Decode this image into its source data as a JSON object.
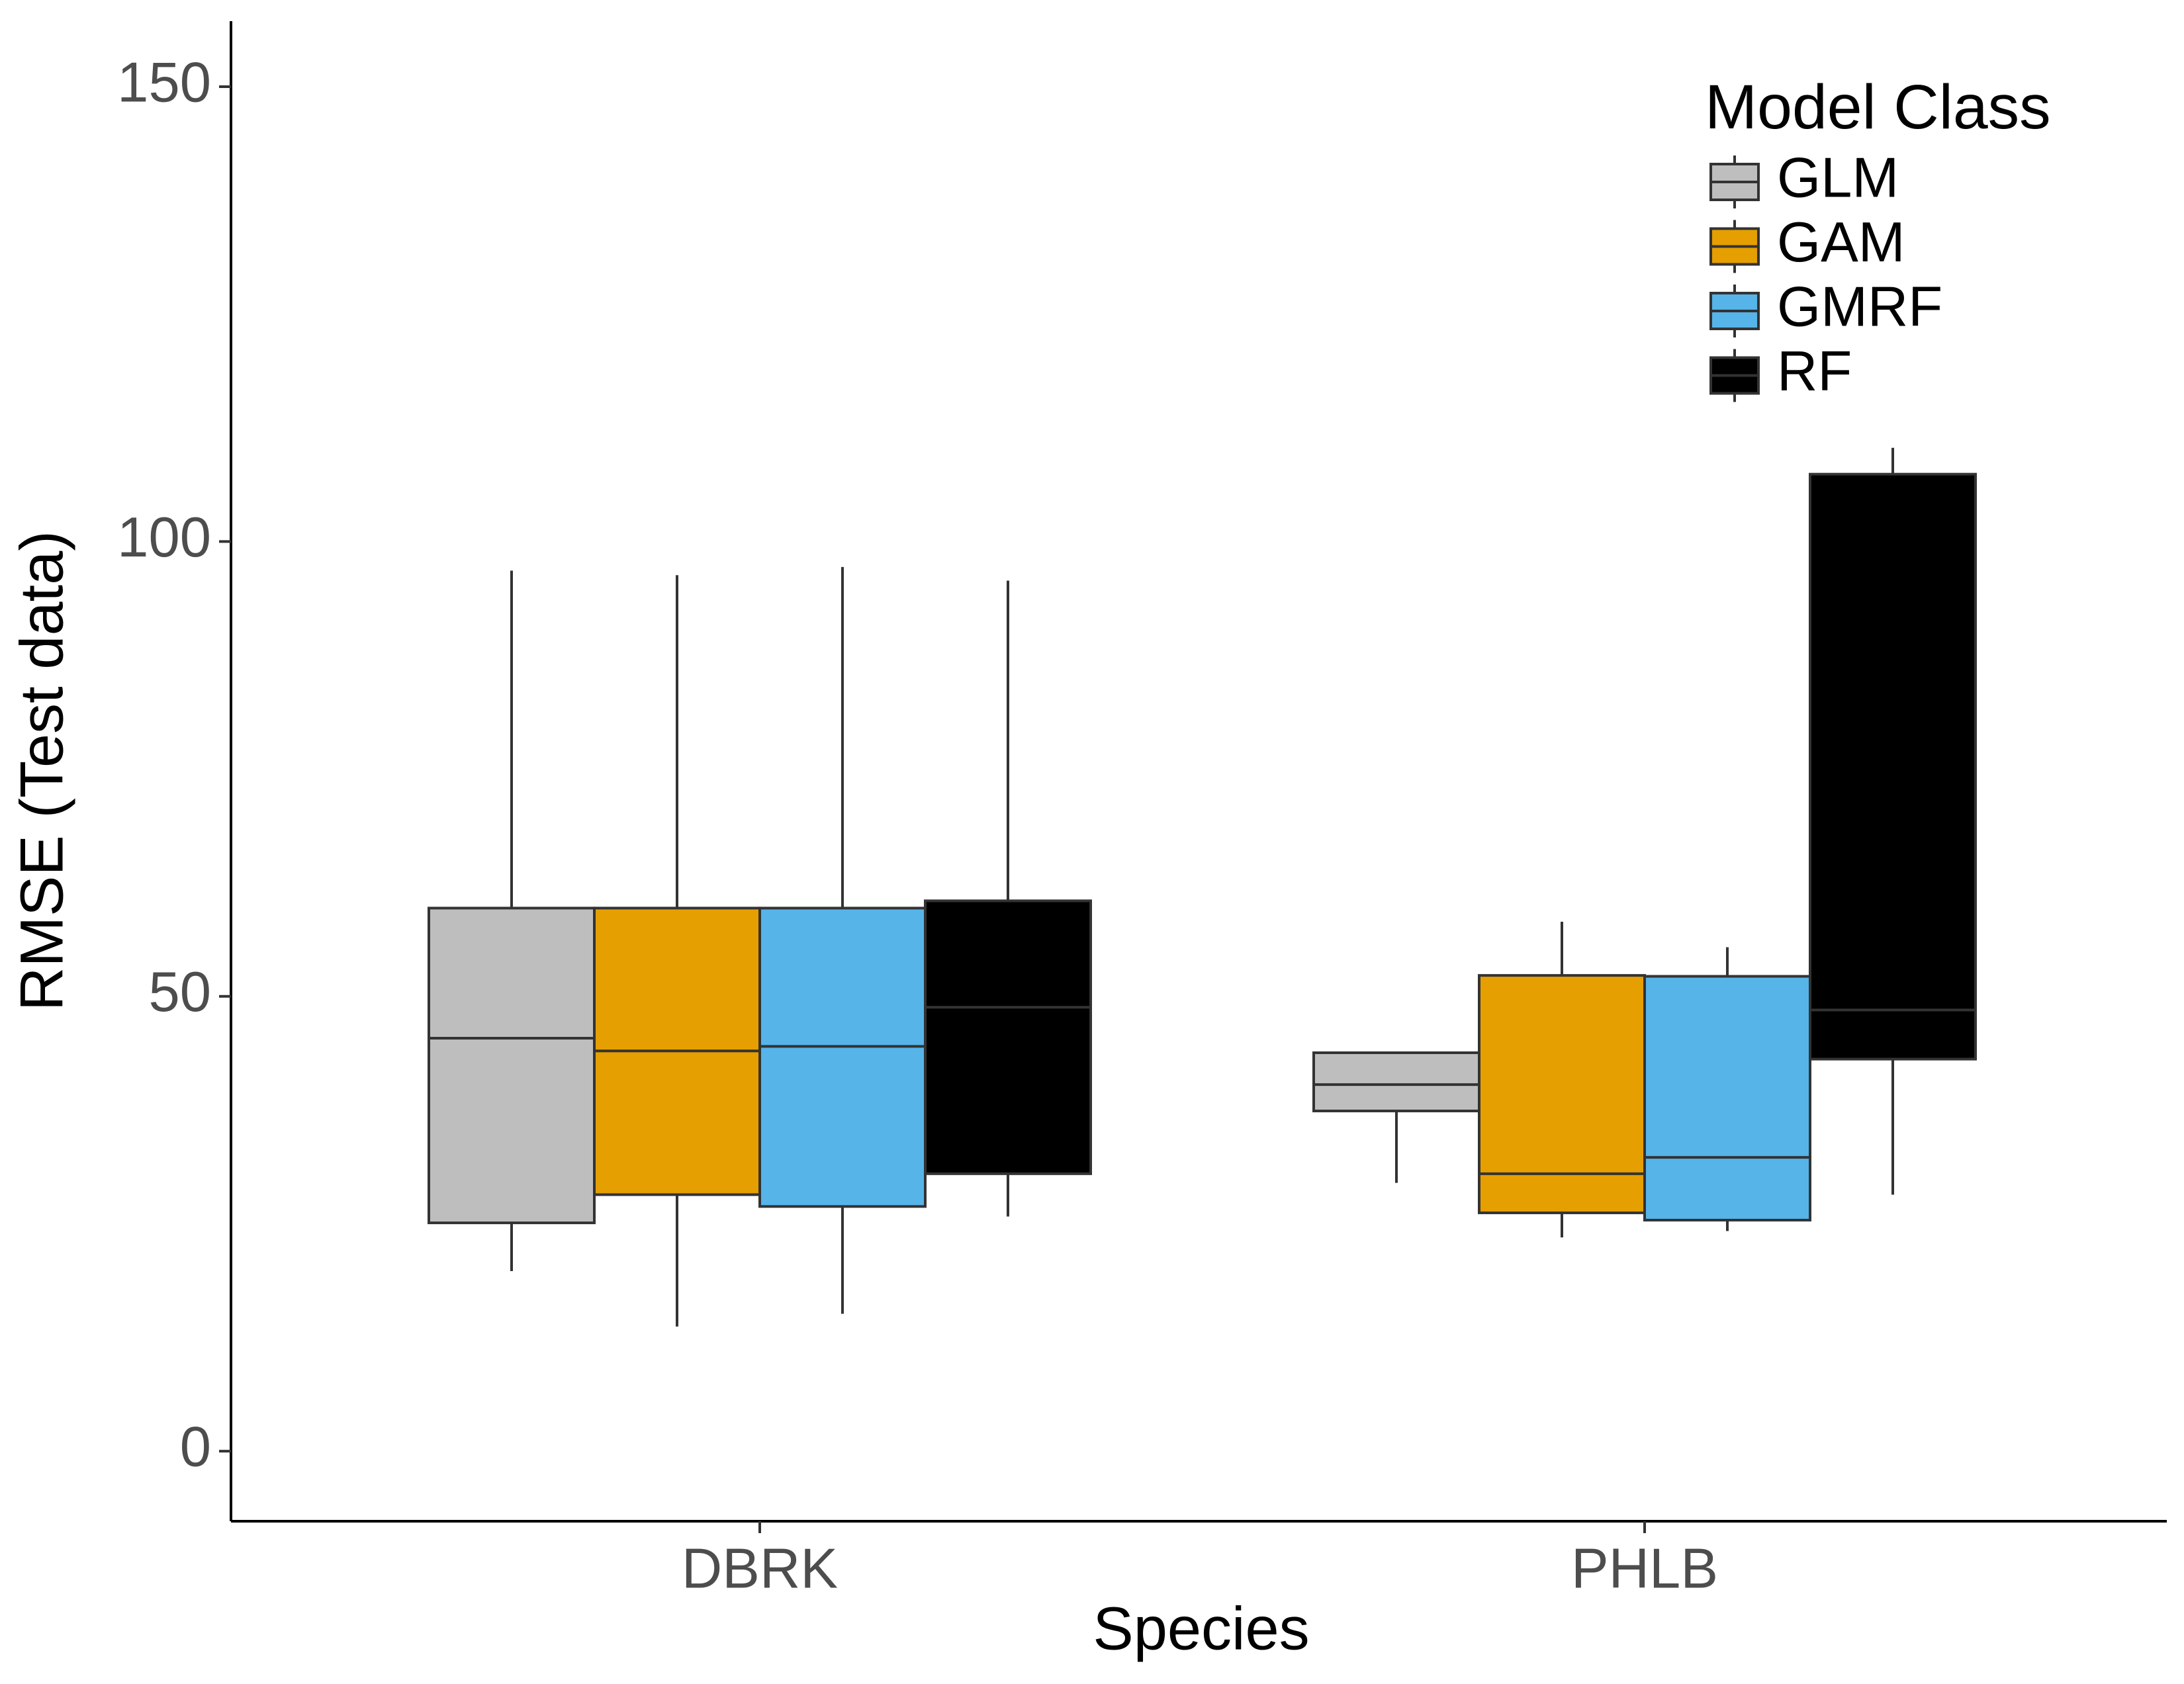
{
  "chart_data": {
    "type": "boxplot",
    "x_label": "Species",
    "y_label": "RMSE (Test data)",
    "legend_title": "Model Class",
    "legend_position": "top-right",
    "categories": [
      "DBRK",
      "PHLB"
    ],
    "series": [
      {
        "name": "GLM",
        "color": "#bebebe",
        "values": [
          [
            19.8,
            25.1,
            45.4,
            59.7,
            96.8
          ],
          [
            29.5,
            37.4,
            40.3,
            43.8,
            43.8
          ]
        ]
      },
      {
        "name": "GAM",
        "color": "#e69f00",
        "values": [
          [
            13.7,
            28.2,
            44.0,
            59.7,
            96.3
          ],
          [
            23.5,
            26.2,
            30.5,
            52.3,
            58.2
          ]
        ]
      },
      {
        "name": "GMRF",
        "color": "#56b4e9",
        "values": [
          [
            15.1,
            26.9,
            44.5,
            59.7,
            97.2
          ],
          [
            24.2,
            25.4,
            32.3,
            52.2,
            55.4
          ]
        ]
      },
      {
        "name": "RF",
        "color": "#000000",
        "values": [
          [
            25.8,
            30.5,
            48.8,
            60.5,
            95.7
          ],
          [
            28.2,
            43.1,
            48.5,
            107.4,
            110.3
          ]
        ]
      }
    ],
    "ylim": [
      -7.7,
      157.2
    ],
    "yticks": [
      0,
      50,
      100,
      150
    ],
    "grid": false
  }
}
